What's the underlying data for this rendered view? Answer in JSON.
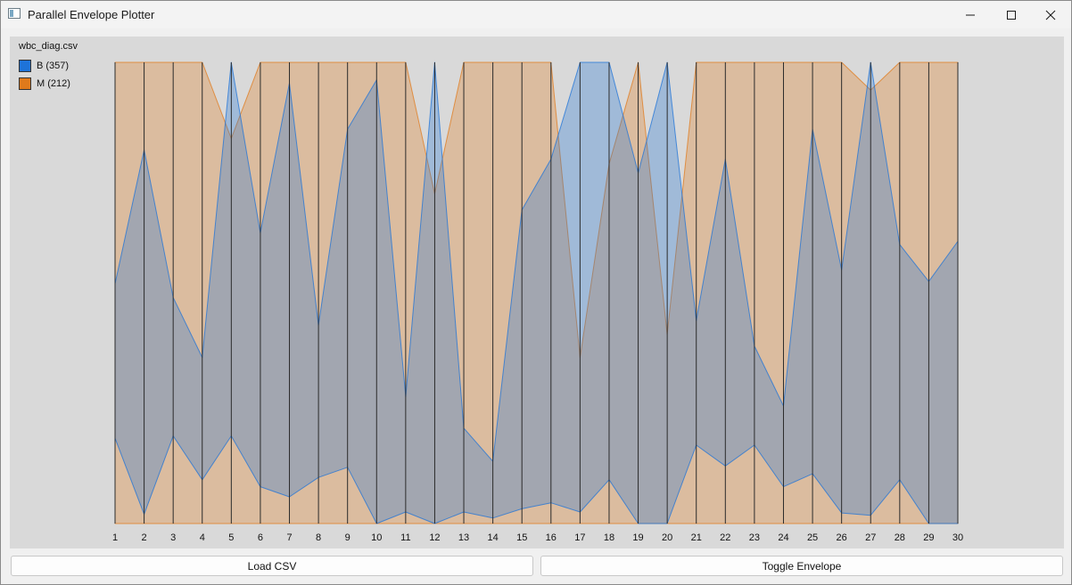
{
  "window": {
    "title": "Parallel Envelope Plotter",
    "icons": {
      "app": "app-window-icon",
      "minimize": "minimize-icon",
      "maximize": "maximize-icon",
      "close": "close-icon"
    }
  },
  "plot": {
    "file_name": "wbc_diag.csv",
    "legend": [
      {
        "label": "B (357)",
        "color": "#1e73d8"
      },
      {
        "label": "M (212)",
        "color": "#e07a1b"
      }
    ]
  },
  "buttons": {
    "load": "Load CSV",
    "toggle": "Toggle Envelope"
  },
  "chart_data": {
    "type": "parallel-envelope",
    "axes": [
      "1",
      "2",
      "3",
      "4",
      "5",
      "6",
      "7",
      "8",
      "9",
      "10",
      "11",
      "12",
      "13",
      "14",
      "15",
      "16",
      "17",
      "18",
      "19",
      "20",
      "21",
      "22",
      "23",
      "24",
      "25",
      "26",
      "27",
      "28",
      "29",
      "30"
    ],
    "ylim": [
      0,
      1
    ],
    "series": [
      {
        "name": "B (357)",
        "color": "#1e73d8",
        "min": [
          0.185,
          0.02,
          0.19,
          0.095,
          0.19,
          0.08,
          0.058,
          0.1,
          0.122,
          0.0,
          0.025,
          0.0,
          0.025,
          0.012,
          0.032,
          0.045,
          0.025,
          0.095,
          0.0,
          0.0,
          0.17,
          0.125,
          0.17,
          0.08,
          0.108,
          0.023,
          0.018,
          0.095,
          0.0,
          0.0
        ],
        "max": [
          0.52,
          0.81,
          0.49,
          0.36,
          1.0,
          0.63,
          0.955,
          0.43,
          0.855,
          0.962,
          0.275,
          1.0,
          0.207,
          0.135,
          0.68,
          0.79,
          1.0,
          1.0,
          0.76,
          1.0,
          0.44,
          0.79,
          0.385,
          0.255,
          0.855,
          0.55,
          1.0,
          0.605,
          0.525,
          0.612
        ]
      },
      {
        "name": "M (212)",
        "color": "#e07a1b",
        "min": [
          0.0,
          0.0,
          0.0,
          0.0,
          0.0,
          0.0,
          0.0,
          0.0,
          0.0,
          0.0,
          0.0,
          0.0,
          0.0,
          0.0,
          0.0,
          0.0,
          0.0,
          0.0,
          0.0,
          0.0,
          0.0,
          0.0,
          0.0,
          0.0,
          0.0,
          0.0,
          0.0,
          0.0,
          0.0,
          0.0
        ],
        "max": [
          1.0,
          1.0,
          1.0,
          1.0,
          0.835,
          1.0,
          1.0,
          1.0,
          1.0,
          1.0,
          1.0,
          0.715,
          1.0,
          1.0,
          1.0,
          1.0,
          0.36,
          0.78,
          1.0,
          0.41,
          1.0,
          1.0,
          1.0,
          1.0,
          1.0,
          1.0,
          0.94,
          1.0,
          1.0,
          1.0
        ]
      }
    ],
    "legend_position": "top-left",
    "grid": false
  }
}
